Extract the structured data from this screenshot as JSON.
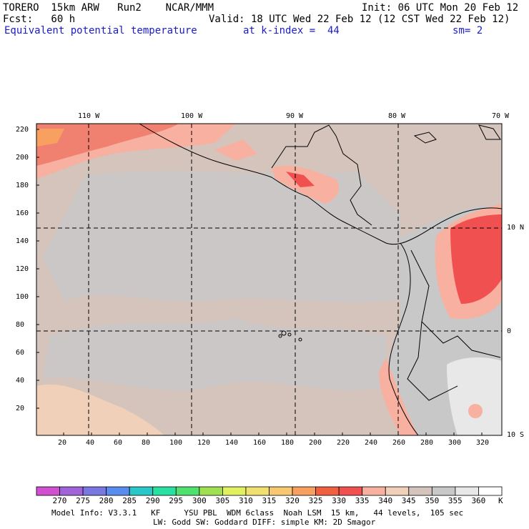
{
  "header": {
    "model": "TORERO  15km ARW   Run2    NCAR/MMM",
    "init": "Init: 06 UTC Mon 20 Feb 12",
    "fcst": "Fcst:   60 h",
    "valid": "Valid: 18 UTC Wed 22 Feb 12 (12 CST Wed 22 Feb 12)",
    "field": "Equivalent potential temperature",
    "level": "at k-index =  44",
    "smooth": "sm= 2"
  },
  "map": {
    "lon_labels": [
      "110 W",
      "100 W",
      "90 W",
      "80 W",
      "70 W"
    ],
    "lat_labels": [
      "10 N",
      "0",
      "10 S"
    ],
    "x_ticks": [
      "20",
      "40",
      "60",
      "80",
      "100",
      "120",
      "140",
      "160",
      "180",
      "200",
      "220",
      "240",
      "260",
      "280",
      "300",
      "320"
    ],
    "y_ticks": [
      "220",
      "200",
      "180",
      "160",
      "140",
      "120",
      "100",
      "80",
      "60",
      "40",
      "20"
    ]
  },
  "colorbar": {
    "labels": [
      "270",
      "275",
      "280",
      "285",
      "290",
      "295",
      "300",
      "305",
      "310",
      "315",
      "320",
      "325",
      "330",
      "335",
      "340",
      "345",
      "350",
      "355",
      "360"
    ],
    "unit": "K",
    "colors": [
      "#d050d0",
      "#a064d8",
      "#7878e0",
      "#5a8cf0",
      "#28c8c8",
      "#28e0a0",
      "#50e070",
      "#a0e050",
      "#e0f060",
      "#f0e070",
      "#f8c870",
      "#f8a060",
      "#f06040",
      "#f05050",
      "#f8b0a0",
      "#f0d0b8",
      "#d4c4bc",
      "#c8c8c8",
      "#e8e8e8",
      "#ffffff"
    ]
  },
  "footer": {
    "line1": "Model Info: V3.3.1   KF     YSU PBL  WDM 6class  Noah LSM  15 km,   44 levels,  105 sec",
    "line2": "LW: Godd SW: Goddard DIFF: simple KM: 2D Smagor"
  }
}
